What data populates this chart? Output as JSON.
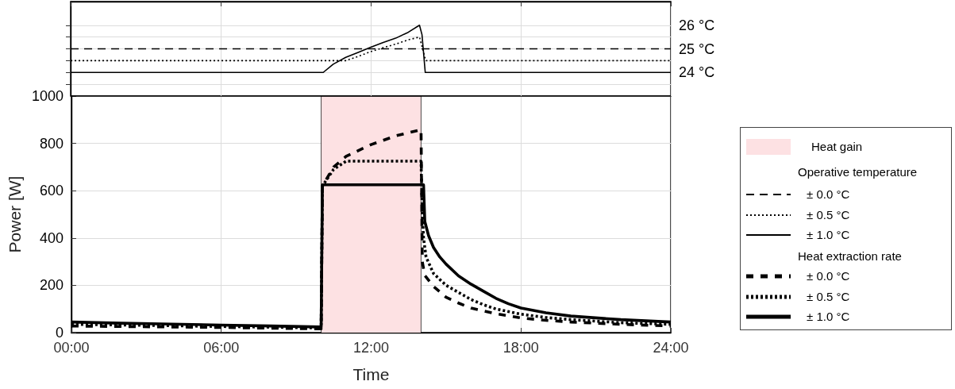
{
  "chart_data": [
    {
      "type": "line",
      "legend_title": "Operative temperature",
      "xlim": [
        0,
        24
      ],
      "xticks": [
        {
          "value": 0,
          "label": null
        },
        {
          "value": 6,
          "label": null
        },
        {
          "value": 12,
          "label": null
        },
        {
          "value": 18,
          "label": null
        },
        {
          "value": 24,
          "label": null
        }
      ],
      "ylim": [
        23,
        27
      ],
      "yticks": [
        {
          "value": 23.5,
          "label": null
        },
        {
          "value": 24,
          "label": "24 °C"
        },
        {
          "value": 24.5,
          "label": null
        },
        {
          "value": 25,
          "label": "25 °C"
        },
        {
          "value": 25.5,
          "label": null
        },
        {
          "value": 26,
          "label": "26 °C"
        }
      ],
      "tick_labels": "y",
      "grid": true,
      "legend": "right",
      "series": [
        {
          "name": "± 0.0 °C",
          "color": "#000000",
          "line_style": "dashed",
          "x": [
            0,
            24
          ],
          "values": [
            25,
            25
          ]
        },
        {
          "name": "± 0.5 °C",
          "color": "#000000",
          "line_style": "dotted",
          "x": [
            0,
            11,
            11.5,
            12,
            12.5,
            13,
            13.5,
            13.95,
            14.1,
            14.2,
            24
          ],
          "values": [
            24.5,
            24.5,
            24.68,
            24.88,
            25.05,
            25.2,
            25.38,
            25.5,
            24.9,
            24.5,
            24.5
          ]
        },
        {
          "name": "± 1.0 °C",
          "color": "#000000",
          "line_style": "solid",
          "x": [
            0,
            10.1,
            10.5,
            11,
            11.5,
            12,
            12.5,
            13,
            13.5,
            13.95,
            14.05,
            14.18,
            24
          ],
          "values": [
            24,
            24,
            24.35,
            24.64,
            24.85,
            25.07,
            25.27,
            25.45,
            25.7,
            26,
            25.6,
            24,
            24
          ]
        }
      ]
    },
    {
      "type": "line",
      "legend_title": "Heat extraction rate",
      "xlabel": "Time",
      "ylabel": "Power [W]",
      "xlim": [
        0,
        24
      ],
      "xticks": [
        {
          "value": 0,
          "label": "00:00"
        },
        {
          "value": 6,
          "label": "06:00"
        },
        {
          "value": 12,
          "label": "12:00"
        },
        {
          "value": 18,
          "label": "18:00"
        },
        {
          "value": 24,
          "label": "24:00"
        }
      ],
      "ylim": [
        0,
        1000
      ],
      "yticks": [
        0,
        200,
        400,
        600,
        800,
        1000
      ],
      "grid": true,
      "legend": "right",
      "series": [
        {
          "name": "Heat gain",
          "type": "area",
          "color": "#fde1e3",
          "x": [
            10,
            10,
            14,
            14
          ],
          "values": [
            0,
            1000,
            1000,
            0
          ]
        },
        {
          "name": "± 0.0 °C",
          "color": "#000000",
          "line_style": "dashed",
          "x": [
            0,
            2,
            4,
            6,
            8,
            10,
            10.05,
            10.5,
            11,
            12,
            13,
            14,
            14.05,
            14.15,
            14.5,
            15,
            15.5,
            16,
            17,
            18,
            19,
            20,
            22,
            24
          ],
          "values": [
            28,
            26,
            24,
            22,
            19,
            16,
            620,
            700,
            745,
            795,
            832,
            858,
            300,
            242,
            195,
            150,
            125,
            104,
            80,
            62,
            52,
            45,
            35,
            28
          ]
        },
        {
          "name": "± 0.5 °C",
          "color": "#000000",
          "line_style": "dotted",
          "x": [
            0,
            2,
            4,
            6,
            8,
            10,
            10.05,
            10.5,
            11,
            14,
            14.05,
            14.1,
            14.2,
            14.5,
            14.75,
            15,
            15.5,
            16,
            16.5,
            17,
            18,
            19,
            20,
            22,
            24
          ],
          "values": [
            35,
            32,
            29,
            26,
            23,
            20,
            620,
            690,
            725,
            725,
            500,
            400,
            320,
            250,
            225,
            200,
            170,
            140,
            118,
            100,
            78,
            64,
            55,
            42,
            35
          ]
        },
        {
          "name": "± 1.0 °C",
          "color": "#000000",
          "line_style": "solid",
          "x": [
            0,
            2,
            4,
            6,
            8,
            10,
            10.05,
            14.1,
            14.15,
            14.3,
            14.5,
            14.75,
            15,
            15.5,
            16,
            16.5,
            17,
            17.5,
            18,
            19,
            20,
            22,
            24
          ],
          "values": [
            45,
            40,
            36,
            32,
            28,
            24,
            625,
            625,
            470,
            410,
            360,
            320,
            290,
            240,
            205,
            175,
            145,
            122,
            104,
            84,
            70,
            55,
            45
          ]
        }
      ]
    }
  ]
}
